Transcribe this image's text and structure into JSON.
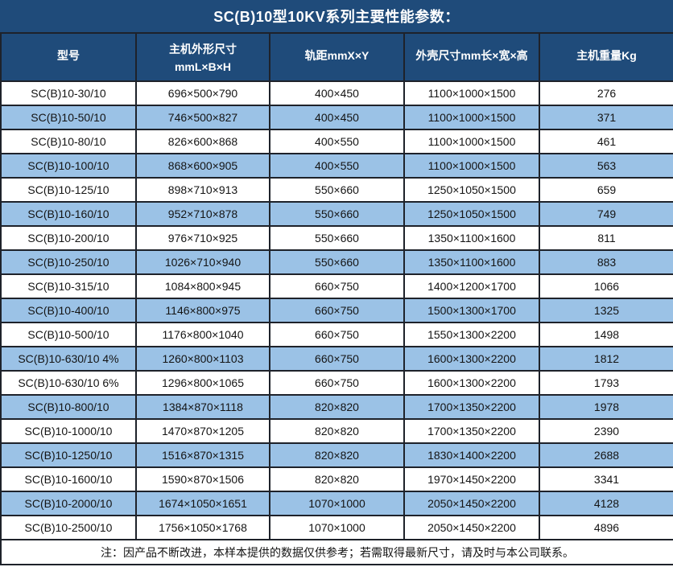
{
  "title": "SC(B)10型10KV系列主要性能参数：",
  "table": {
    "columns": [
      {
        "label": "型号",
        "sublabel": ""
      },
      {
        "label": "主机外形尺寸",
        "sublabel": "mmL×B×H"
      },
      {
        "label": "轨距mmX×Y",
        "sublabel": ""
      },
      {
        "label": "外壳尺寸mm长×宽×高",
        "sublabel": ""
      },
      {
        "label": "主机重量Kg",
        "sublabel": ""
      }
    ],
    "rows": [
      [
        "SC(B)10-30/10",
        "696×500×790",
        "400×450",
        "1100×1000×1500",
        "276"
      ],
      [
        "SC(B)10-50/10",
        "746×500×827",
        "400×450",
        "1100×1000×1500",
        "371"
      ],
      [
        "SC(B)10-80/10",
        "826×600×868",
        "400×550",
        "1100×1000×1500",
        "461"
      ],
      [
        "SC(B)10-100/10",
        "868×600×905",
        "400×550",
        "1100×1000×1500",
        "563"
      ],
      [
        "SC(B)10-125/10",
        "898×710×913",
        "550×660",
        "1250×1050×1500",
        "659"
      ],
      [
        "SC(B)10-160/10",
        "952×710×878",
        "550×660",
        "1250×1050×1500",
        "749"
      ],
      [
        "SC(B)10-200/10",
        "976×710×925",
        "550×660",
        "1350×1100×1600",
        "811"
      ],
      [
        "SC(B)10-250/10",
        "1026×710×940",
        "550×660",
        "1350×1100×1600",
        "883"
      ],
      [
        "SC(B)10-315/10",
        "1084×800×945",
        "660×750",
        "1400×1200×1700",
        "1066"
      ],
      [
        "SC(B)10-400/10",
        "1146×800×975",
        "660×750",
        "1500×1300×1700",
        "1325"
      ],
      [
        "SC(B)10-500/10",
        "1176×800×1040",
        "660×750",
        "1550×1300×2200",
        "1498"
      ],
      [
        "SC(B)10-630/10 4%",
        "1260×800×1103",
        "660×750",
        "1600×1300×2200",
        "1812"
      ],
      [
        "SC(B)10-630/10 6%",
        "1296×800×1065",
        "660×750",
        "1600×1300×2200",
        "1793"
      ],
      [
        "SC(B)10-800/10",
        "1384×870×1118",
        "820×820",
        "1700×1350×2200",
        "1978"
      ],
      [
        "SC(B)10-1000/10",
        "1470×870×1205",
        "820×820",
        "1700×1350×2200",
        "2390"
      ],
      [
        "SC(B)10-1250/10",
        "1516×870×1315",
        "820×820",
        "1830×1400×2200",
        "2688"
      ],
      [
        "SC(B)10-1600/10",
        "1590×870×1506",
        "820×820",
        "1970×1450×2200",
        "3341"
      ],
      [
        "SC(B)10-2000/10",
        "1674×1050×1651",
        "1070×1000",
        "2050×1450×2200",
        "4128"
      ],
      [
        "SC(B)10-2500/10",
        "1756×1050×1768",
        "1070×1000",
        "2050×1450×2200",
        "4896"
      ]
    ]
  },
  "note": "注：因产品不断改进，本样本提供的数据仅供参考；若需取得最新尺寸，请及时与本公司联系。",
  "colors": {
    "header_bg": "#1f4b7a",
    "stripe_bg": "#9bc2e6",
    "row_bg": "#ffffff",
    "border": "#1e222a",
    "header_text": "#ffffff",
    "cell_text": "#141414"
  }
}
